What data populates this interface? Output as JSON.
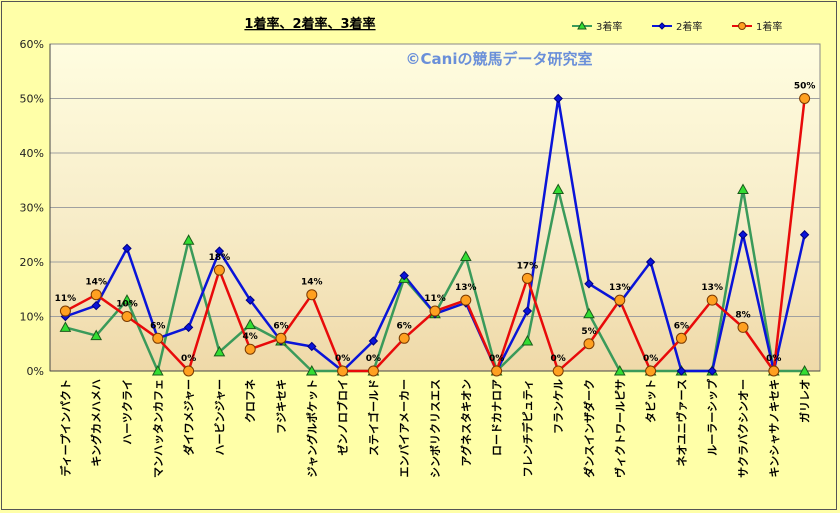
{
  "chart_data": {
    "type": "line",
    "title": "1着率、2着率、3着率",
    "watermark": "©Caniの競馬データ研究室",
    "ylim": [
      0,
      60
    ],
    "yticks": [
      "0%",
      "10%",
      "20%",
      "30%",
      "40%",
      "50%",
      "60%"
    ],
    "categories": [
      "ディープインパクト",
      "キングカメハメハ",
      "ハーツクライ",
      "マンハッタンカフェ",
      "ダイワメジャー",
      "ハービンジャー",
      "クロフネ",
      "フジキセキ",
      "ジャングルポケット",
      "ゼンノロブロイ",
      "ステイゴールド",
      "エンパイアメーカー",
      "シンボリクリスエス",
      "アグネスタキオン",
      "ロードカナロア",
      "フレンチデピュティ",
      "フランケル",
      "ダンスインザダーク",
      "ヴィクトワールピサ",
      "タビット",
      "ネオユニヴァース",
      "ルーラーシップ",
      "サクラバクシンオー",
      "キンシャサノキセキ",
      "ガリレオ"
    ],
    "series": [
      {
        "name": "3着率",
        "color": "#3a9a5a",
        "marker": "triangle",
        "marker_color": "#33dd33",
        "values": [
          8,
          6.5,
          13,
          0,
          24,
          3.5,
          8.5,
          5.5,
          0,
          0,
          0,
          17,
          10.5,
          21,
          0,
          5.5,
          33.3,
          10.5,
          0,
          0,
          0,
          0,
          33.3,
          0,
          0
        ]
      },
      {
        "name": "2着率",
        "color": "#0a14d8",
        "marker": "diamond",
        "marker_color": "#0a14d8",
        "values": [
          10,
          12,
          22.5,
          6,
          8,
          22,
          13,
          5.5,
          4.5,
          0,
          5.5,
          17.5,
          10.5,
          12.5,
          0,
          11,
          50,
          16,
          12.5,
          20,
          0,
          0,
          25,
          0,
          25
        ]
      },
      {
        "name": "1着率",
        "color": "#e80a0a",
        "marker": "circle",
        "marker_color": "#ffa020",
        "values": [
          11,
          14,
          10,
          6,
          0,
          18.5,
          4,
          6,
          14,
          0,
          0,
          6,
          11,
          13,
          0,
          17,
          0,
          5,
          13,
          0,
          6,
          13,
          8,
          0,
          50
        ]
      }
    ],
    "data_labels": [
      "11%",
      "14%",
      "10%",
      "6%",
      "0%",
      "18%",
      "4%",
      "6%",
      "14%",
      "0%",
      "0%",
      "6%",
      "11%",
      "13%",
      "0%",
      "17%",
      "0%",
      "5%",
      "13%",
      "0%",
      "6%",
      "13%",
      "8%",
      "0%",
      "50%"
    ],
    "legend_position": "top-right",
    "grid": true
  }
}
